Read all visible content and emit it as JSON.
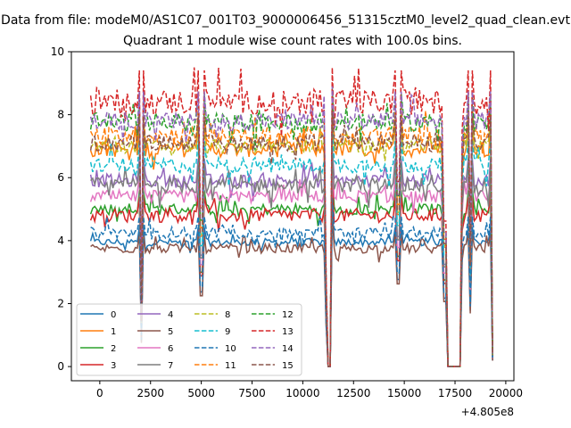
{
  "figure": {
    "suptitle": "Data from file: modeM0/AS1C07_001T03_9000006456_51315cztM0_level2_quad_clean.evt",
    "offset_label": "+4.805e8"
  },
  "chart_data": {
    "type": "line",
    "title": "Quadrant 1 module wise count rates with 100.0s bins.",
    "xlabel": "",
    "ylabel": "",
    "x_offset": 480500000,
    "xlim": [
      -1400,
      20400
    ],
    "ylim": [
      -0.45,
      10.0
    ],
    "xticks": [
      0,
      2500,
      5000,
      7500,
      10000,
      12500,
      15000,
      17500,
      20000
    ],
    "xtick_labels": [
      "0",
      "2500",
      "5000",
      "7500",
      "10000",
      "12500",
      "15000",
      "17500",
      "20000"
    ],
    "yticks": [
      0,
      2,
      4,
      6,
      8,
      10
    ],
    "ytick_labels": [
      "0",
      "2",
      "4",
      "6",
      "8",
      "10"
    ],
    "grid": false,
    "legend_location": "lower-left",
    "legend_columns": 4,
    "x_start": -450,
    "bin": 100,
    "x_end": 19350,
    "gaps": [
      {
        "from": 11200,
        "to": 11350,
        "value": 0
      },
      {
        "from": 17150,
        "to": 17800,
        "value": 0
      }
    ],
    "dips": [
      {
        "at": 2050,
        "depth": 0.8
      },
      {
        "at": 5000,
        "depth": 0.4
      },
      {
        "at": 14700,
        "depth": 0.3
      },
      {
        "at": 18250,
        "depth": 0.55
      },
      {
        "at": 19350,
        "depth": 0.95
      }
    ],
    "series": [
      {
        "name": "0",
        "color": "#1f77b4",
        "dash": "solid",
        "mean": 3.95,
        "noise": 0.12
      },
      {
        "name": "1",
        "color": "#ff7f0e",
        "dash": "solid",
        "mean": 6.9,
        "noise": 0.25
      },
      {
        "name": "2",
        "color": "#2ca02c",
        "dash": "solid",
        "mean": 5.0,
        "noise": 0.18
      },
      {
        "name": "3",
        "color": "#d62728",
        "dash": "solid",
        "mean": 4.8,
        "noise": 0.22
      },
      {
        "name": "4",
        "color": "#9467bd",
        "dash": "solid",
        "mean": 5.9,
        "noise": 0.22
      },
      {
        "name": "5",
        "color": "#8c564b",
        "dash": "solid",
        "mean": 3.75,
        "noise": 0.15
      },
      {
        "name": "6",
        "color": "#e377c2",
        "dash": "solid",
        "mean": 5.4,
        "noise": 0.2
      },
      {
        "name": "7",
        "color": "#7f7f7f",
        "dash": "solid",
        "mean": 5.75,
        "noise": 0.25
      },
      {
        "name": "8",
        "color": "#bcbd22",
        "dash": "dashed",
        "mean": 7.0,
        "noise": 0.22
      },
      {
        "name": "9",
        "color": "#17becf",
        "dash": "dashed",
        "mean": 6.4,
        "noise": 0.25
      },
      {
        "name": "10",
        "color": "#1f77b4",
        "dash": "dashed",
        "mean": 4.25,
        "noise": 0.18
      },
      {
        "name": "11",
        "color": "#ff7f0e",
        "dash": "dashed",
        "mean": 7.35,
        "noise": 0.28
      },
      {
        "name": "12",
        "color": "#2ca02c",
        "dash": "dashed",
        "mean": 7.75,
        "noise": 0.3
      },
      {
        "name": "13",
        "color": "#d62728",
        "dash": "dashed",
        "mean": 8.4,
        "noise": 0.4
      },
      {
        "name": "14",
        "color": "#9467bd",
        "dash": "dashed",
        "mean": 7.8,
        "noise": 0.28
      },
      {
        "name": "15",
        "color": "#8c564b",
        "dash": "dashed",
        "mean": 7.1,
        "noise": 0.25
      }
    ]
  }
}
